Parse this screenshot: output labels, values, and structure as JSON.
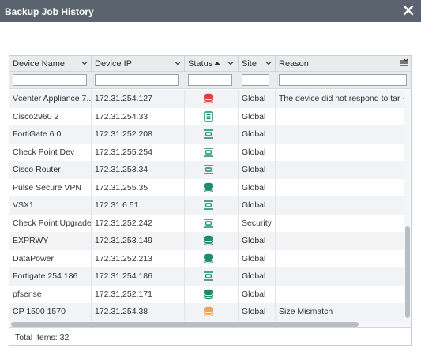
{
  "window": {
    "title": "Backup Job History",
    "close_icon": "close-icon"
  },
  "columns": [
    {
      "key": "device_name",
      "label": "Device Name",
      "menu_icon": "chevron-down-icon"
    },
    {
      "key": "device_ip",
      "label": "Device IP",
      "menu_icon": "chevron-down-icon"
    },
    {
      "key": "status",
      "label": "Status",
      "sort_icon": "sort-ascending-icon",
      "menu_icon": "chevron-down-icon"
    },
    {
      "key": "site",
      "label": "Site",
      "menu_icon": "chevron-down-icon"
    },
    {
      "key": "reason",
      "label": "Reason",
      "menu_icon": "column-menu-icon"
    }
  ],
  "filters": {
    "device_name": "",
    "device_ip": "",
    "status": "",
    "site": "",
    "reason": ""
  },
  "status_colors": {
    "failed": "#e03a3e",
    "complete": "#1b8a6b",
    "warning": "#f0a050"
  },
  "rows": [
    {
      "device_name": "Vcenter Appliance 7...",
      "device_ip": "172.31.254.127",
      "status_icon": "database-failed-icon",
      "status_color": "#e03a3e",
      "site": "Global",
      "reason": "The device did not respond to tar -c..."
    },
    {
      "device_name": "Cisco2960 2",
      "device_ip": "172.31.254.33",
      "status_icon": "document-icon",
      "status_color": "#1b8a6b",
      "site": "Global",
      "reason": ""
    },
    {
      "device_name": "FortiGate 6.0",
      "device_ip": "172.31.252.208",
      "status_icon": "unchanged-icon",
      "status_color": "#1b8a6b",
      "site": "Global",
      "reason": ""
    },
    {
      "device_name": "Check Point Dev",
      "device_ip": "172.31.255.254",
      "status_icon": "unchanged-icon",
      "status_color": "#1b8a6b",
      "site": "Global",
      "reason": ""
    },
    {
      "device_name": "Cisco Router",
      "device_ip": "172.31.253.34",
      "status_icon": "unchanged-icon",
      "status_color": "#1b8a6b",
      "site": "Global",
      "reason": ""
    },
    {
      "device_name": "Pulse Secure VPN",
      "device_ip": "172.31.255.35",
      "status_icon": "database-success-icon",
      "status_color": "#1b8a6b",
      "site": "Global",
      "reason": ""
    },
    {
      "device_name": "VSX1",
      "device_ip": "172.31.6.51",
      "status_icon": "unchanged-icon",
      "status_color": "#1b8a6b",
      "site": "Global",
      "reason": ""
    },
    {
      "device_name": "Check Point Upgrade",
      "device_ip": "172.31.252.242",
      "status_icon": "unchanged-icon",
      "status_color": "#1b8a6b",
      "site": "Security",
      "reason": ""
    },
    {
      "device_name": "EXPRWY",
      "device_ip": "172.31.253.149",
      "status_icon": "database-success-icon",
      "status_color": "#1b8a6b",
      "site": "Global",
      "reason": ""
    },
    {
      "device_name": "DataPower",
      "device_ip": "172.31.252.213",
      "status_icon": "database-success-icon",
      "status_color": "#1b8a6b",
      "site": "Global",
      "reason": ""
    },
    {
      "device_name": "Fortigate 254.186",
      "device_ip": "172.31.254.186",
      "status_icon": "unchanged-icon",
      "status_color": "#1b8a6b",
      "site": "Global",
      "reason": ""
    },
    {
      "device_name": "pfsense",
      "device_ip": "172.31.252.171",
      "status_icon": "database-success-icon",
      "status_color": "#1b8a6b",
      "site": "Global",
      "reason": ""
    },
    {
      "device_name": "CP 1500 1570",
      "device_ip": "172.31.254.38",
      "status_icon": "database-warning-icon",
      "status_color": "#f0a050",
      "site": "Global",
      "reason": "Size Mismatch"
    }
  ],
  "footer": {
    "total_items": "Total Items: 32"
  }
}
